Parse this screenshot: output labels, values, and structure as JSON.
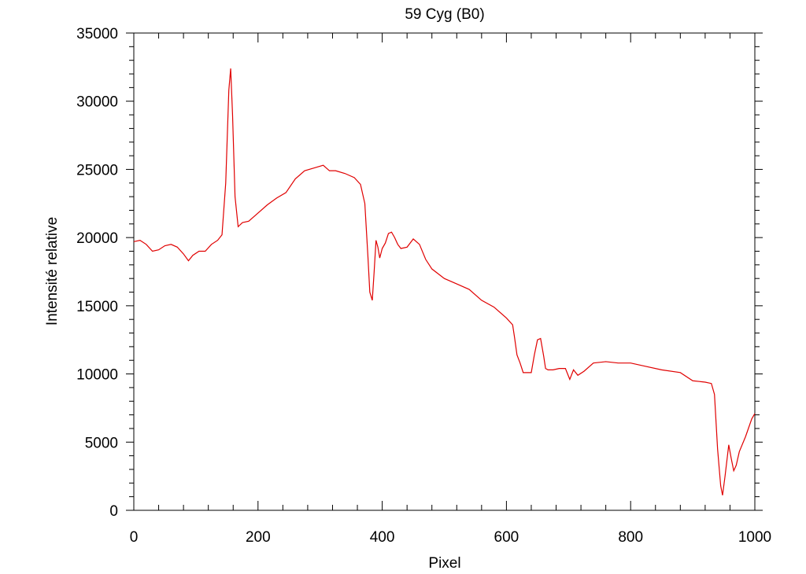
{
  "chart_data": {
    "type": "line",
    "title": "59 Cyg (B0)",
    "xlabel": "Pixel",
    "ylabel": "Intensité relative",
    "xlim": [
      0,
      1000
    ],
    "ylim": [
      0,
      35000
    ],
    "x_ticks": [
      0,
      200,
      400,
      600,
      800,
      1000
    ],
    "y_ticks": [
      0,
      5000,
      10000,
      15000,
      20000,
      25000,
      30000,
      35000
    ],
    "grid": false,
    "legend": "none",
    "line_color": "#e00000",
    "series": [
      {
        "x": [
          0,
          10,
          20,
          30,
          40,
          50,
          60,
          70,
          80,
          88,
          95,
          105,
          115,
          125,
          135,
          142,
          148,
          153,
          156,
          159,
          163,
          168,
          175,
          185,
          200,
          215,
          230,
          245,
          260,
          275,
          290,
          305,
          315,
          325,
          340,
          355,
          365,
          372,
          377,
          380,
          384,
          387,
          390,
          393,
          396,
          400,
          405,
          410,
          415,
          420,
          425,
          430,
          440,
          450,
          460,
          470,
          480,
          500,
          520,
          540,
          560,
          580,
          600,
          610,
          613,
          617,
          622,
          627,
          632,
          640,
          645,
          650,
          655,
          660,
          663,
          667,
          675,
          685,
          695,
          702,
          708,
          715,
          725,
          740,
          760,
          780,
          800,
          820,
          850,
          880,
          900,
          920,
          930,
          935,
          940,
          945,
          948,
          952,
          958,
          962,
          966,
          970,
          975,
          985,
          995,
          1000
        ],
        "values": [
          19700,
          19800,
          19500,
          19000,
          19100,
          19400,
          19500,
          19300,
          18800,
          18300,
          18700,
          19000,
          19000,
          19500,
          19800,
          20200,
          24000,
          30800,
          32400,
          29000,
          23000,
          20800,
          21100,
          21200,
          21800,
          22400,
          22900,
          23300,
          24300,
          24900,
          25100,
          25300,
          24900,
          24900,
          24700,
          24400,
          23900,
          22500,
          18600,
          16000,
          15400,
          17500,
          19800,
          19300,
          18500,
          19200,
          19600,
          20300,
          20400,
          20000,
          19500,
          19200,
          19300,
          19900,
          19500,
          18400,
          17700,
          17000,
          16600,
          16200,
          15400,
          14900,
          14100,
          13600,
          12700,
          11400,
          10800,
          10100,
          10100,
          10100,
          11400,
          12500,
          12600,
          11300,
          10400,
          10300,
          10300,
          10400,
          10400,
          9600,
          10300,
          9900,
          10200,
          10800,
          10900,
          10800,
          10800,
          10600,
          10300,
          10100,
          9500,
          9400,
          9300,
          8500,
          4500,
          1800,
          1100,
          2500,
          4800,
          3800,
          2900,
          3300,
          4300,
          5400,
          6700,
          7100
        ]
      }
    ]
  }
}
